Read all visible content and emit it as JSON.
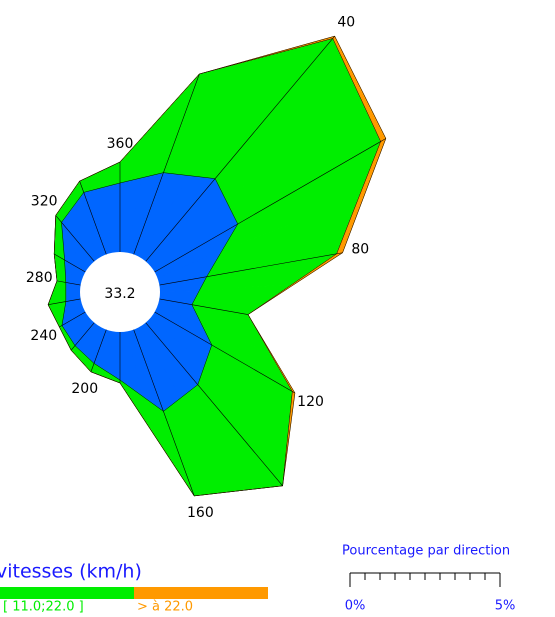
{
  "chart_data": {
    "type": "windrose",
    "categories": [
      "360",
      null,
      "40",
      null,
      "80",
      null,
      "120",
      null,
      "160",
      null,
      "200",
      null,
      "240",
      null,
      "280",
      null,
      "320",
      null
    ],
    "calm": 33.2,
    "legend_title": "vitesses (km/h)",
    "series": [
      {
        "color": "#0066ff",
        "values": [
          2.3,
          2.9,
          3.6,
          3.2,
          1.6,
          1.1,
          2.2,
          2.7,
          2.9,
          1.6,
          1.2,
          1.0,
          0.9,
          0.5,
          0.5,
          0.8,
          1.7,
          2.2
        ]
      },
      {
        "name": "[ 11.0;22.0 ]",
        "color": "#00ee00",
        "values": [
          0.7,
          3.5,
          6.1,
          5.5,
          4.4,
          1.9,
          3.1,
          4.4,
          3.0,
          0.1,
          0.3,
          0.2,
          0.1,
          0.6,
          0.3,
          0.4,
          0.3,
          0.4
        ]
      },
      {
        "name": "> à 22.0",
        "color": "#ff9900",
        "values": [
          0,
          0,
          0.1,
          0.2,
          0.2,
          0,
          0.1,
          0,
          0,
          0,
          0,
          0,
          0,
          0,
          0,
          0,
          0,
          0
        ]
      }
    ],
    "scale_title": "Pourcentage par direction",
    "scale_ticks": [
      {
        "value": 0,
        "label": "0%"
      },
      {
        "value": 5,
        "label": "5%"
      }
    ],
    "scale_minor_ticks": [
      0.5,
      1,
      1.5,
      2,
      2.5,
      3,
      3.5,
      4,
      4.5
    ]
  }
}
